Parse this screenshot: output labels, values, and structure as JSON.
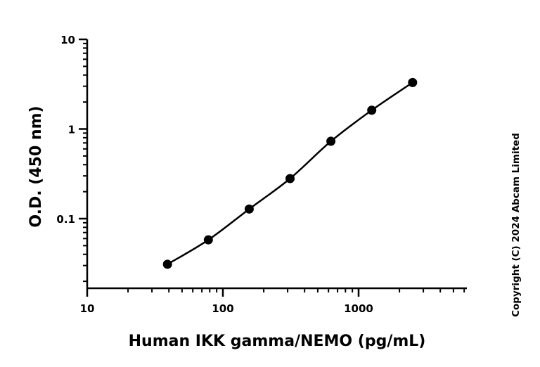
{
  "chart_data": {
    "type": "scatter",
    "xlabel": "Human IKK gamma/NEMO (pg/mL)",
    "ylabel": "O.D. (450 nm)",
    "xscale": "log",
    "yscale": "log",
    "xlim": [
      10,
      6500
    ],
    "ylim": [
      0.01,
      10
    ],
    "x_ticks": [
      {
        "value": 10,
        "label": "10"
      },
      {
        "value": 100,
        "label": "100"
      },
      {
        "value": 1000,
        "label": "1000"
      }
    ],
    "y_ticks": [
      {
        "value": 0.1,
        "label": "0.1"
      },
      {
        "value": 1,
        "label": "1"
      },
      {
        "value": 10,
        "label": "10"
      }
    ],
    "series": [
      {
        "x": [
          39.06,
          78.13,
          156.25,
          312.5,
          625,
          1250,
          2500
        ],
        "y": [
          0.031,
          0.058,
          0.128,
          0.28,
          0.73,
          1.62,
          3.3
        ],
        "fit": "curve",
        "color": "#000000"
      }
    ],
    "grid": false,
    "legend": "none",
    "copyright": "Copyright (C) 2024 Abcam Limited"
  }
}
